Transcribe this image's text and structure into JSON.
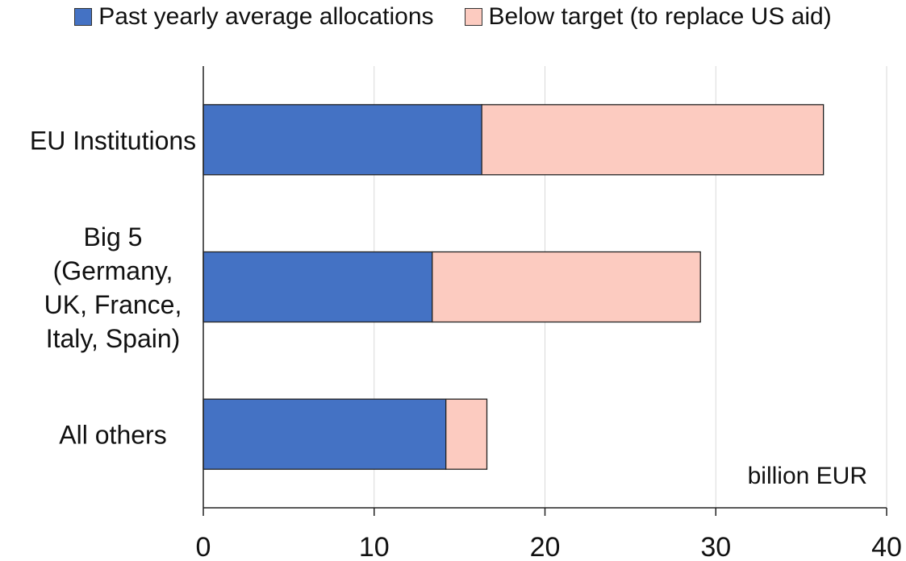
{
  "chart_data": {
    "type": "bar",
    "orientation": "horizontal",
    "stacked": true,
    "categories": [
      [
        "EU Institutions"
      ],
      [
        "Big 5",
        "(Germany,",
        "UK, France,",
        "Italy, Spain)"
      ],
      [
        "All others"
      ]
    ],
    "series": [
      {
        "name": "Past yearly average allocations",
        "color": "#4472C4",
        "values": [
          16.3,
          13.4,
          14.2
        ]
      },
      {
        "name": "Below target (to replace US aid)",
        "color": "#FCCBC0",
        "values": [
          20.0,
          15.7,
          2.4
        ]
      }
    ],
    "xlim": [
      0,
      40
    ],
    "xticks": [
      "0",
      "10",
      "20",
      "30",
      "40"
    ],
    "unit_label": "billion EUR",
    "grid": true,
    "legend_position": "top"
  }
}
